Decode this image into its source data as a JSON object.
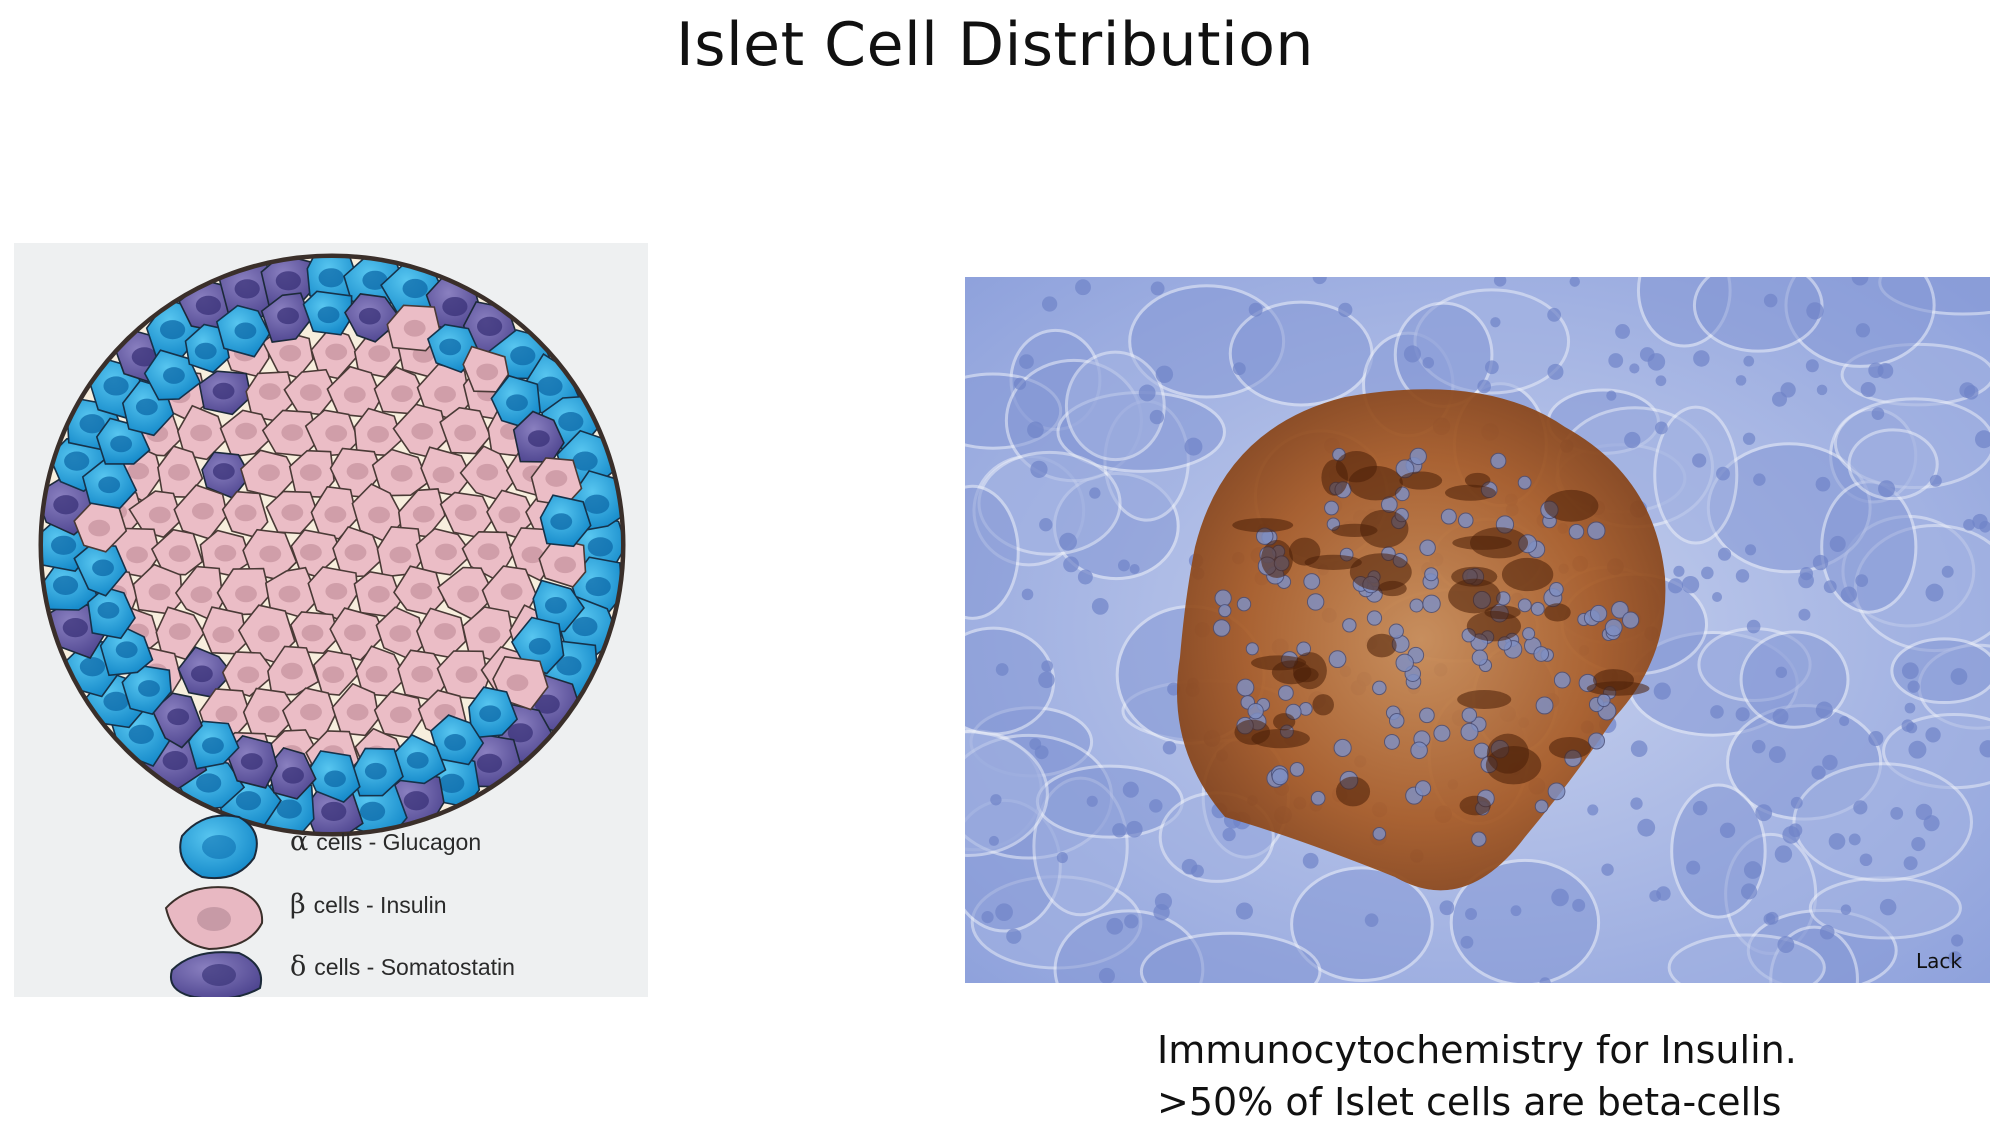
{
  "title": "Islet Cell Distribution",
  "legend": [
    {
      "symbol": "α",
      "text": "cells - Glucagon",
      "color": "#2aa3dc"
    },
    {
      "symbol": "β",
      "text": "cells - Insulin",
      "color": "#e8b6c0"
    },
    {
      "symbol": "δ",
      "text": "cells - Somatostatin",
      "color": "#6b5fa8"
    }
  ],
  "photo": {
    "credit": "Lack"
  },
  "caption": {
    "line1": "Immunocytochemistry for Insulin.",
    "line2": ">50% of Islet cells are beta-cells"
  }
}
